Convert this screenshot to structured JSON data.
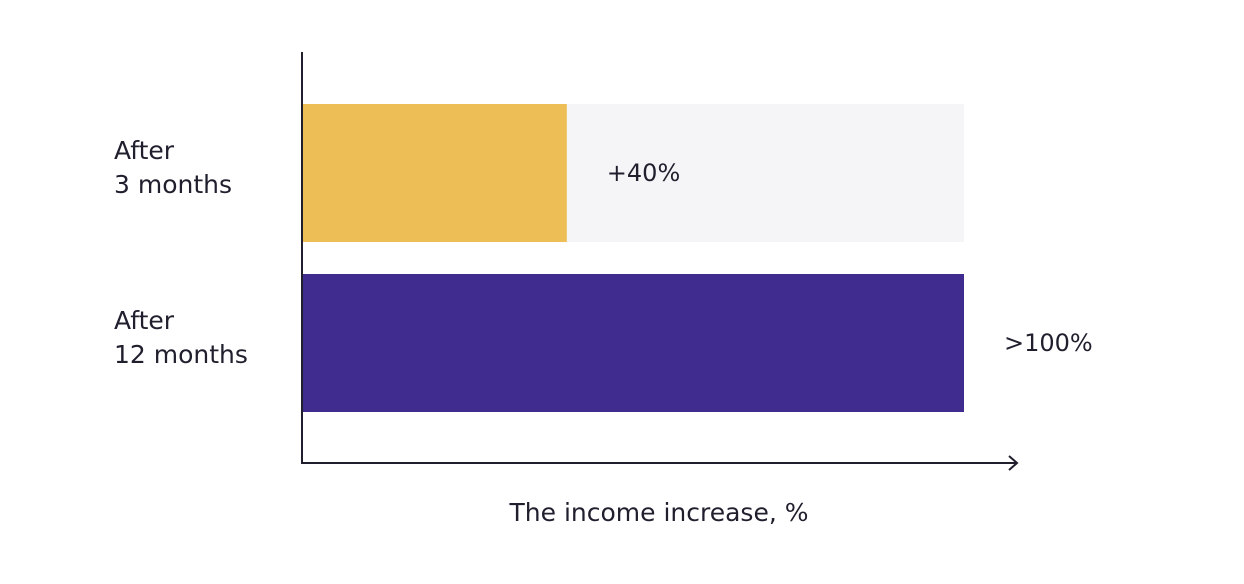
{
  "chart_data": {
    "type": "bar",
    "orientation": "horizontal",
    "categories": [
      [
        "After",
        "3 months"
      ],
      [
        "After",
        "12 months"
      ]
    ],
    "values": [
      40,
      100
    ],
    "data_labels": [
      "+40%",
      ">100%"
    ],
    "xlabel": "The income increase, %",
    "ylabel": "",
    "xlim": [
      0,
      100
    ],
    "grid": false,
    "legend": "none",
    "colors": {
      "bar_3_months": "#ECBE55",
      "bar_12_months": "#3F2C8E",
      "track": "#F5F4F7",
      "axis": "#1f1f2e"
    }
  }
}
